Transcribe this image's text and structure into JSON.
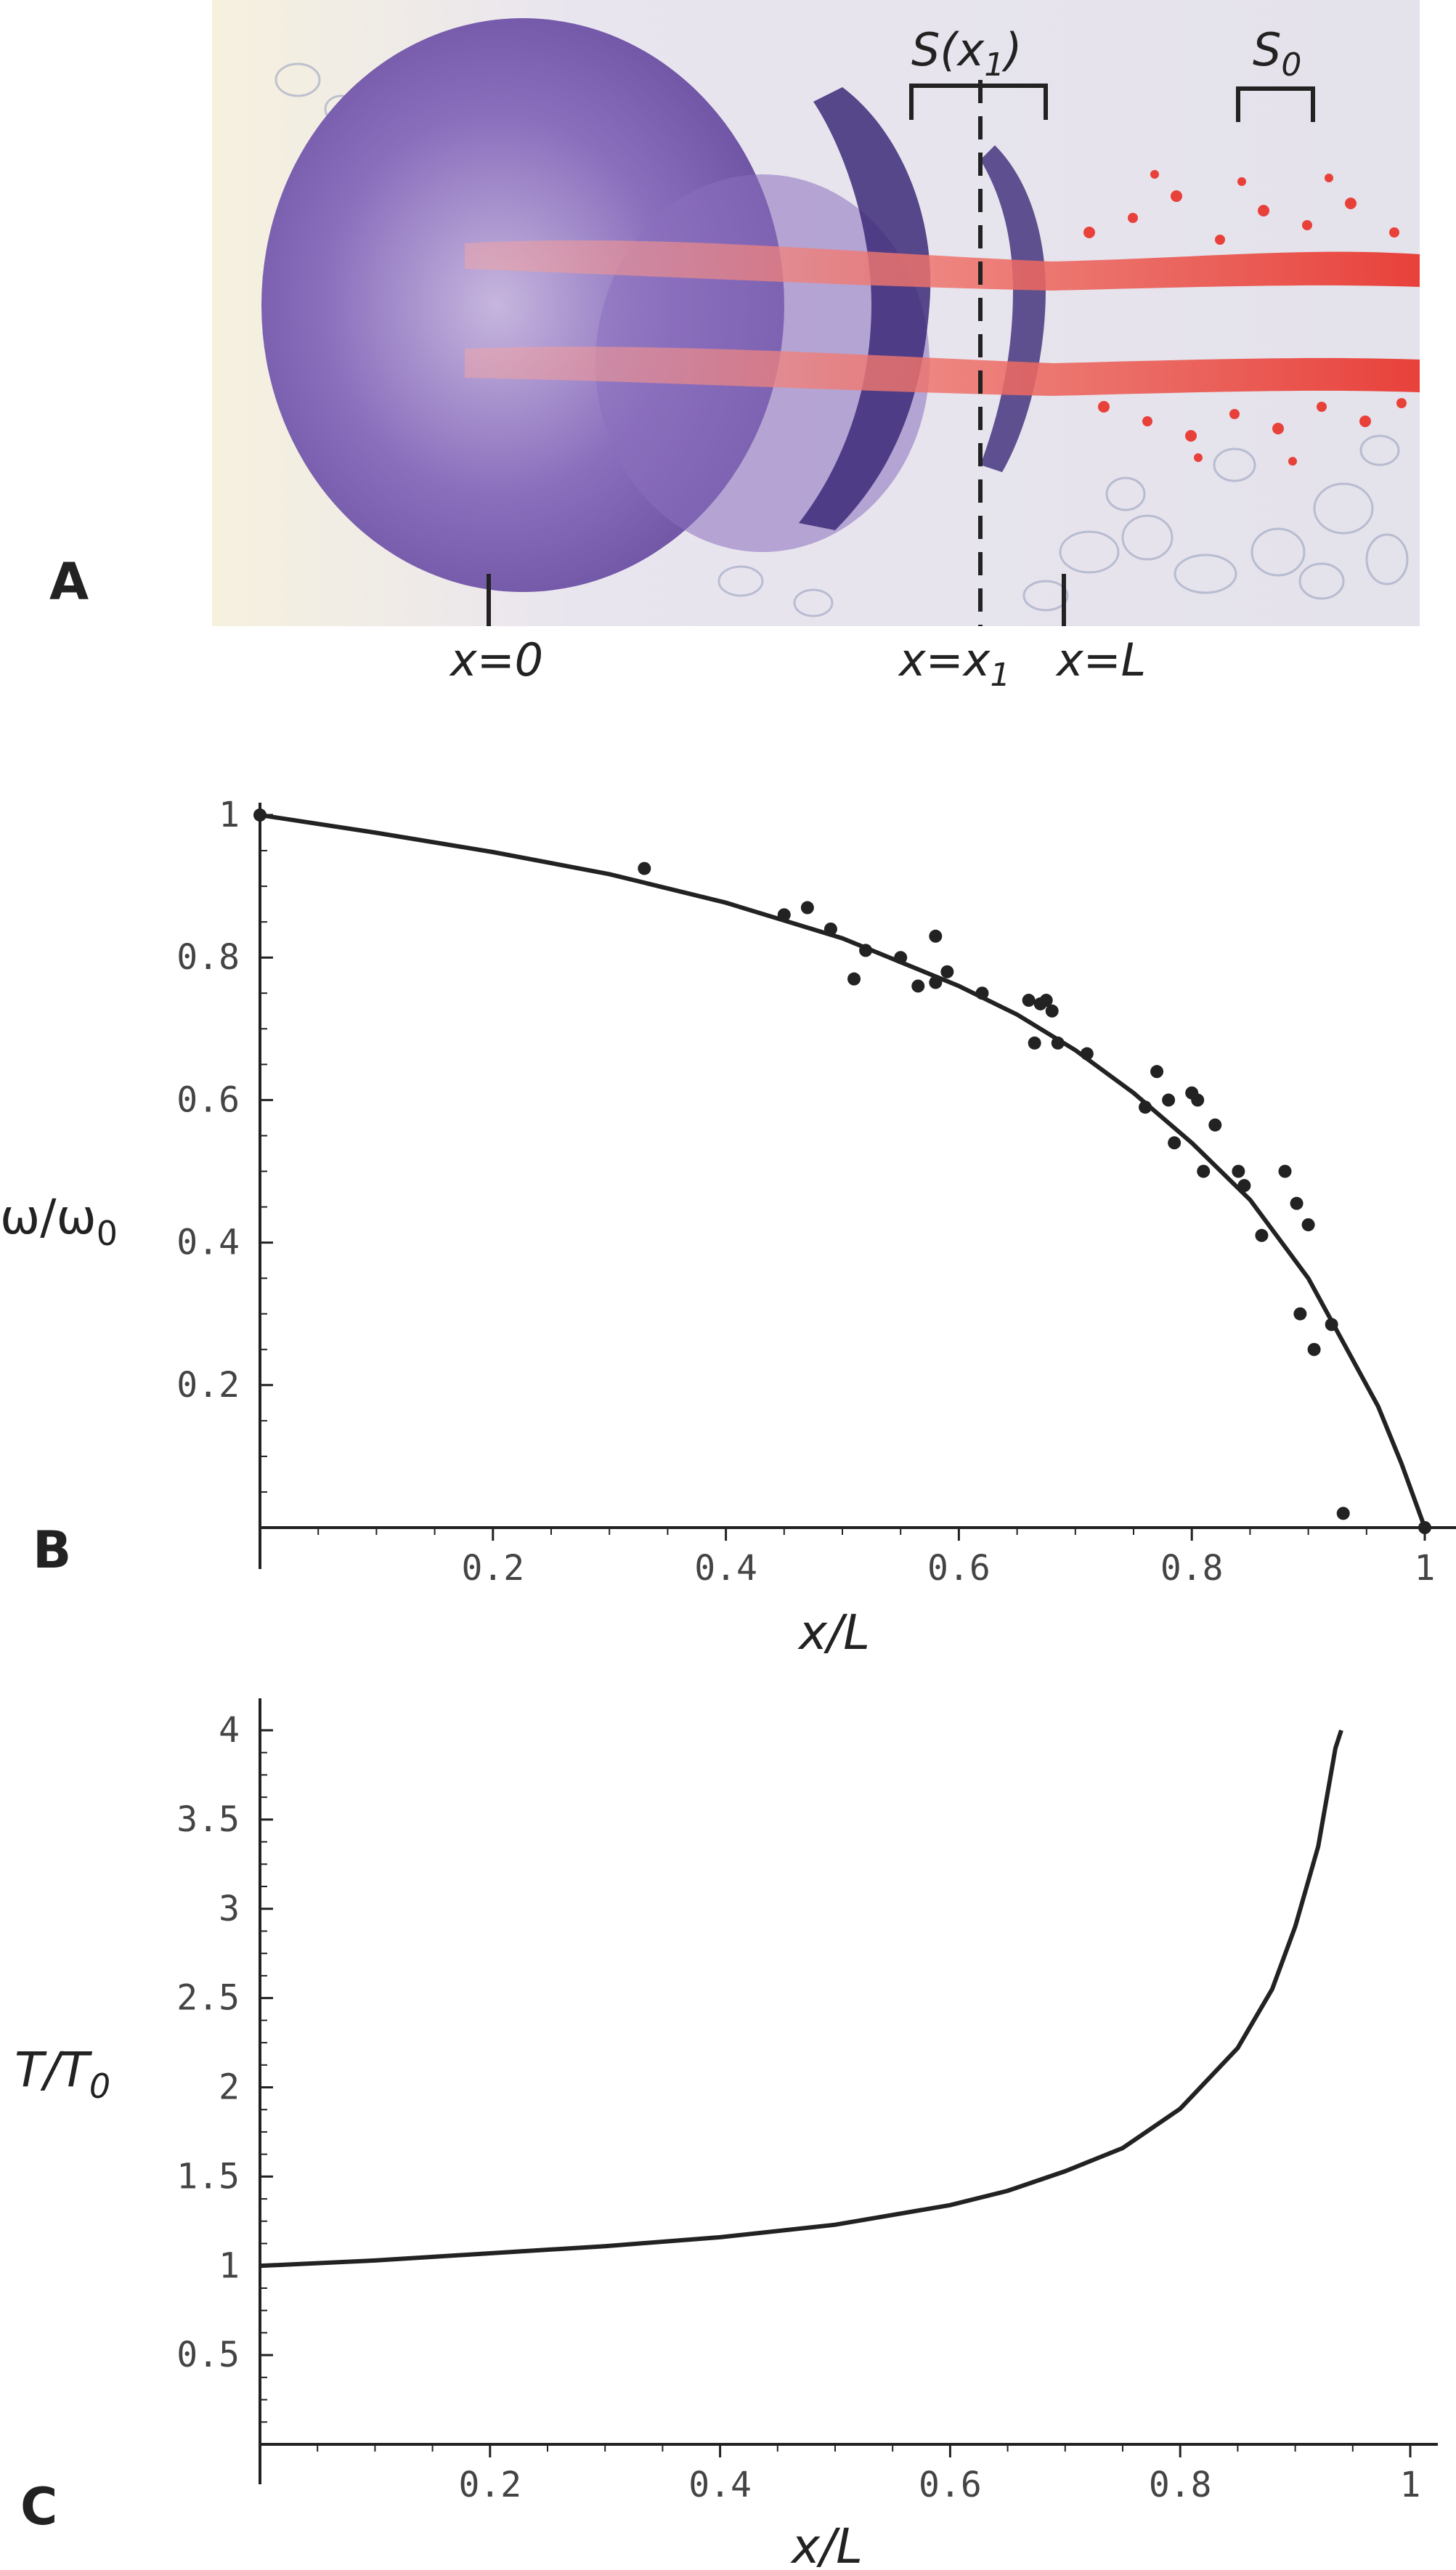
{
  "panel_a": {
    "letter": "A",
    "labels": {
      "x0": "x=0",
      "x1": "x=x",
      "x1_sub": "1",
      "xL": "x=L",
      "s_x1": "S(x",
      "s_x1_sub": "1",
      "s_x1_close": ")",
      "s0": "S",
      "s0_sub": "0"
    },
    "colors": {
      "background": "#e9e5ef",
      "tissue_purple": "#6a4fa0",
      "tissue_dark": "#3c2a78",
      "stain_red": "#e8413a",
      "stain_pink": "#f3a6a6"
    }
  },
  "chart_data": [
    {
      "panel": "B",
      "type": "scatter",
      "title": "",
      "xlabel": "x/L",
      "ylabel": "ω/ω",
      "ylabel_sub": "0",
      "xlim": [
        0,
        1
      ],
      "ylim": [
        0,
        1
      ],
      "x_ticks": [
        "0.2",
        "0.4",
        "0.6",
        "0.8",
        "1"
      ],
      "y_ticks": [
        "0.2",
        "0.4",
        "0.6",
        "0.8",
        "1"
      ],
      "points": [
        [
          0,
          1
        ],
        [
          0.33,
          0.925
        ],
        [
          0.45,
          0.86
        ],
        [
          0.47,
          0.87
        ],
        [
          0.49,
          0.84
        ],
        [
          0.51,
          0.77
        ],
        [
          0.52,
          0.81
        ],
        [
          0.55,
          0.8
        ],
        [
          0.565,
          0.76
        ],
        [
          0.58,
          0.83
        ],
        [
          0.58,
          0.765
        ],
        [
          0.59,
          0.78
        ],
        [
          0.62,
          0.75
        ],
        [
          0.66,
          0.74
        ],
        [
          0.665,
          0.68
        ],
        [
          0.67,
          0.735
        ],
        [
          0.675,
          0.74
        ],
        [
          0.68,
          0.725
        ],
        [
          0.685,
          0.68
        ],
        [
          0.71,
          0.665
        ],
        [
          0.76,
          0.59
        ],
        [
          0.77,
          0.64
        ],
        [
          0.78,
          0.6
        ],
        [
          0.785,
          0.54
        ],
        [
          0.8,
          0.61
        ],
        [
          0.805,
          0.6
        ],
        [
          0.81,
          0.5
        ],
        [
          0.82,
          0.565
        ],
        [
          0.84,
          0.5
        ],
        [
          0.845,
          0.48
        ],
        [
          0.86,
          0.41
        ],
        [
          0.88,
          0.5
        ],
        [
          0.89,
          0.455
        ],
        [
          0.893,
          0.3
        ],
        [
          0.9,
          0.425
        ],
        [
          0.905,
          0.25
        ],
        [
          0.92,
          0.285
        ],
        [
          0.93,
          0.02
        ],
        [
          1,
          0
        ]
      ],
      "curve": [
        [
          0,
          1
        ],
        [
          0.1,
          0.975
        ],
        [
          0.2,
          0.948
        ],
        [
          0.3,
          0.917
        ],
        [
          0.4,
          0.877
        ],
        [
          0.5,
          0.827
        ],
        [
          0.6,
          0.76
        ],
        [
          0.65,
          0.72
        ],
        [
          0.7,
          0.67
        ],
        [
          0.75,
          0.61
        ],
        [
          0.8,
          0.54
        ],
        [
          0.85,
          0.46
        ],
        [
          0.9,
          0.35
        ],
        [
          0.93,
          0.26
        ],
        [
          0.96,
          0.17
        ],
        [
          0.98,
          0.09
        ],
        [
          1,
          0
        ]
      ]
    },
    {
      "panel": "C",
      "type": "line",
      "title": "",
      "xlabel": "x/L",
      "ylabel": "T/T",
      "ylabel_sub": "0",
      "xlim": [
        0,
        1
      ],
      "ylim": [
        0,
        4
      ],
      "x_ticks": [
        "0.2",
        "0.4",
        "0.6",
        "0.8",
        "1"
      ],
      "y_ticks": [
        "0.5",
        "1",
        "1.5",
        "2",
        "2.5",
        "3",
        "3.5",
        "4"
      ],
      "curve": [
        [
          0,
          1
        ],
        [
          0.1,
          1.03
        ],
        [
          0.2,
          1.07
        ],
        [
          0.3,
          1.11
        ],
        [
          0.4,
          1.16
        ],
        [
          0.5,
          1.23
        ],
        [
          0.6,
          1.34
        ],
        [
          0.65,
          1.42
        ],
        [
          0.7,
          1.53
        ],
        [
          0.75,
          1.66
        ],
        [
          0.8,
          1.88
        ],
        [
          0.85,
          2.22
        ],
        [
          0.88,
          2.55
        ],
        [
          0.9,
          2.9
        ],
        [
          0.92,
          3.35
        ],
        [
          0.935,
          3.9
        ],
        [
          0.94,
          4
        ]
      ]
    }
  ]
}
